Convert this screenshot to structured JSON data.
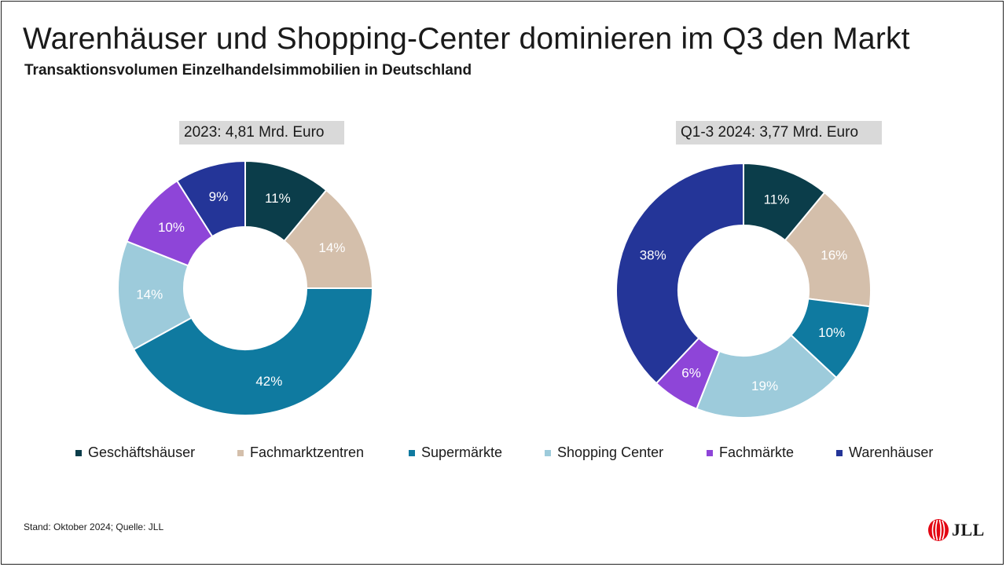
{
  "page": {
    "title": "Warenhäuser und Shopping-Center dominieren im Q3 den Markt",
    "subtitle": "Transaktionsvolumen Einzelhandelsimmobilien in Deutschland",
    "footer": "Stand: Oktober 2024; Quelle: JLL",
    "logo_text": "JLL"
  },
  "chart_data": [
    {
      "type": "donut",
      "title": "2023: 4,81 Mrd. Euro",
      "categories": [
        "Geschäftshäuser",
        "Fachmarktzentren",
        "Supermärkte",
        "Shopping Center",
        "Fachmärkte",
        "Warenhäuser"
      ],
      "values": [
        11,
        14,
        42,
        14,
        10,
        9
      ],
      "labels": [
        "11%",
        "14%",
        "42%",
        "14%",
        "10%",
        "9%"
      ],
      "unit": "%",
      "colors": [
        "#0b3d4a",
        "#d4bfab",
        "#0f7aa0",
        "#9dcbdb",
        "#8e45d8",
        "#243598"
      ]
    },
    {
      "type": "donut",
      "title": "Q1-3 2024: 3,77 Mrd. Euro",
      "categories": [
        "Geschäftshäuser",
        "Fachmarktzentren",
        "Supermärkte",
        "Shopping Center",
        "Fachmärkte",
        "Warenhäuser"
      ],
      "values": [
        11,
        16,
        10,
        19,
        6,
        38
      ],
      "labels": [
        "11%",
        "16%",
        "10%",
        "19%",
        "6%",
        "38%"
      ],
      "unit": "%",
      "colors": [
        "#0b3d4a",
        "#d4bfab",
        "#0f7aa0",
        "#9dcbdb",
        "#8e45d8",
        "#243598"
      ]
    }
  ],
  "legend": {
    "position": "bottom",
    "items": [
      {
        "label": "Geschäftshäuser",
        "color": "#0b3d4a"
      },
      {
        "label": "Fachmarktzentren",
        "color": "#d4bfab"
      },
      {
        "label": "Supermärkte",
        "color": "#0f7aa0"
      },
      {
        "label": "Shopping Center",
        "color": "#9dcbdb"
      },
      {
        "label": "Fachmärkte",
        "color": "#8e45d8"
      },
      {
        "label": "Warenhäuser",
        "color": "#243598"
      }
    ]
  },
  "brand_color": "#e30613"
}
